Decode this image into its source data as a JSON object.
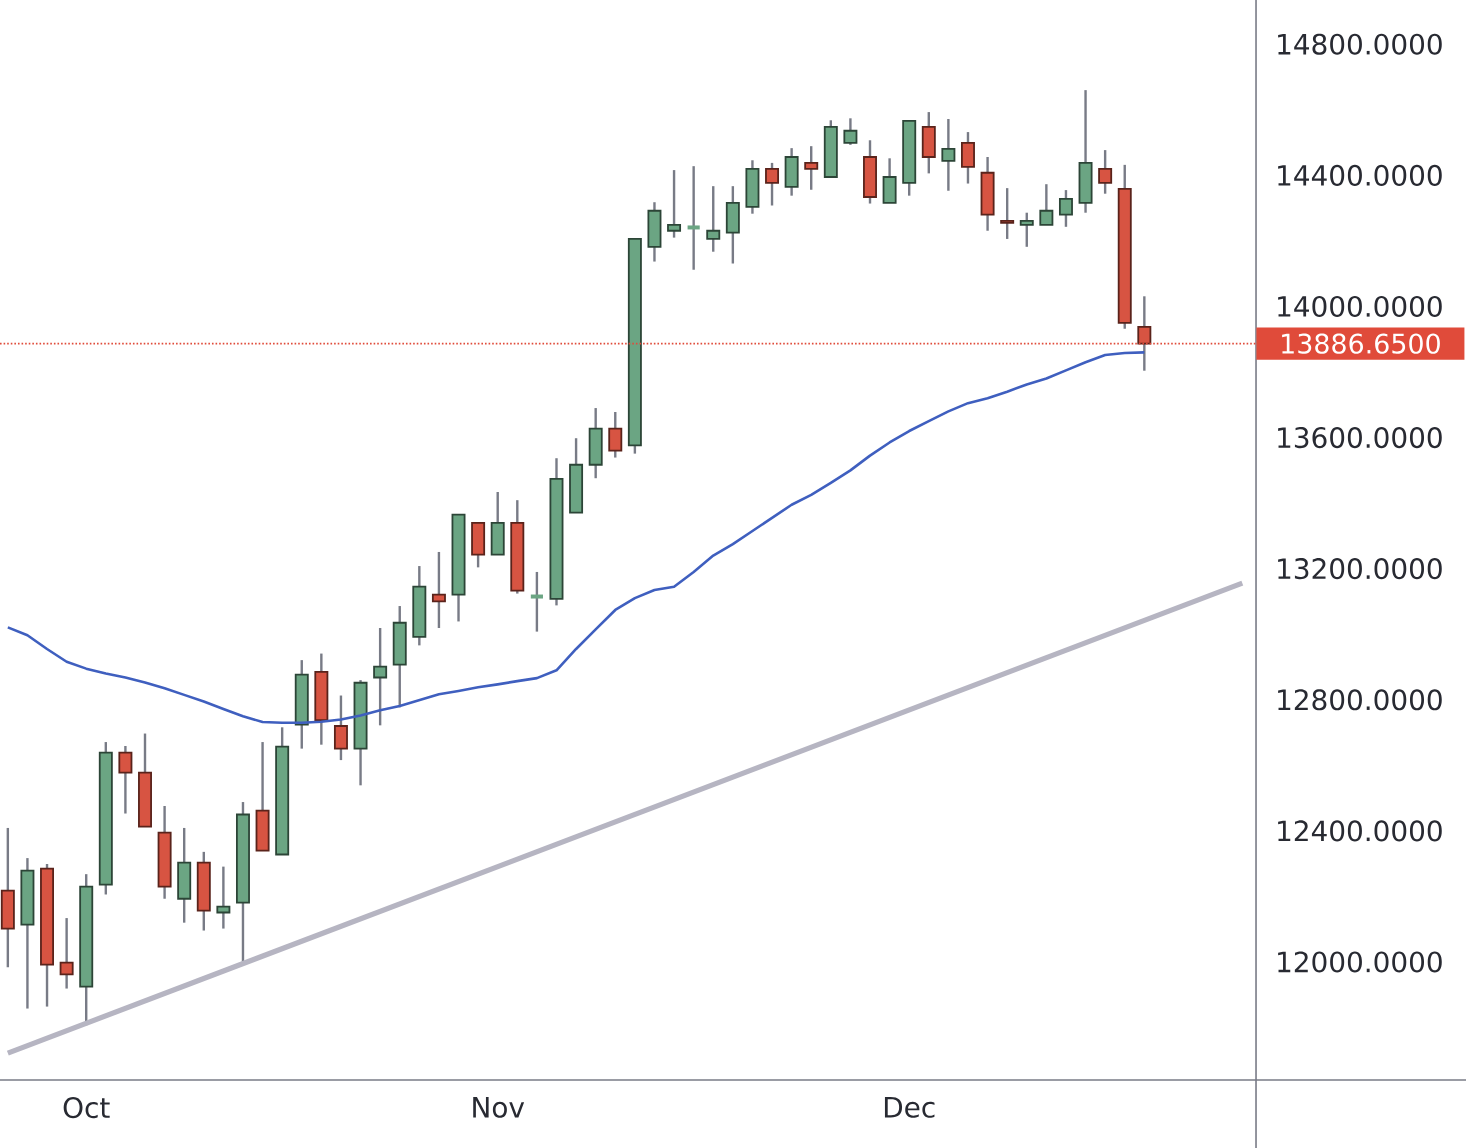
{
  "chart_data": {
    "type": "candlestick",
    "categories": [
      null,
      null,
      null,
      null,
      "Oct",
      null,
      null,
      null,
      null,
      null,
      null,
      null,
      null,
      null,
      null,
      null,
      null,
      null,
      null,
      null,
      null,
      null,
      null,
      null,
      null,
      "Nov",
      null,
      null,
      null,
      null,
      null,
      null,
      null,
      null,
      null,
      null,
      null,
      null,
      null,
      null,
      null,
      null,
      null,
      null,
      null,
      null,
      "Dec",
      null,
      null,
      null,
      null,
      null,
      null,
      null,
      null,
      null,
      null,
      null,
      null,
      null,
      null,
      null,
      null,
      null
    ],
    "ohlc": [
      [
        12218,
        12409,
        11984,
        12102
      ],
      [
        12114,
        12317,
        11858,
        12279
      ],
      [
        12285,
        12299,
        11864,
        11992
      ],
      [
        11998,
        12134,
        11919,
        11962
      ],
      [
        11925,
        12268,
        11807,
        12230
      ],
      [
        12236,
        12671,
        12206,
        12639
      ],
      [
        12639,
        12659,
        12453,
        12578
      ],
      [
        12578,
        12697,
        12413,
        12413
      ],
      [
        12395,
        12476,
        12193,
        12230
      ],
      [
        12193,
        12409,
        12120,
        12303
      ],
      [
        12303,
        12336,
        12096,
        12157
      ],
      [
        12151,
        12291,
        12102,
        12169
      ],
      [
        12181,
        12488,
        11990,
        12450
      ],
      [
        12462,
        12671,
        12340,
        12340
      ],
      [
        12328,
        12716,
        12328,
        12657
      ],
      [
        12724,
        12921,
        12651,
        12877
      ],
      [
        12885,
        12941,
        12663,
        12738
      ],
      [
        12720,
        12813,
        12616,
        12651
      ],
      [
        12651,
        12860,
        12539,
        12852
      ],
      [
        12868,
        13019,
        12722,
        12901
      ],
      [
        12907,
        13086,
        12777,
        13035
      ],
      [
        12992,
        13208,
        12966,
        13145
      ],
      [
        13121,
        13251,
        13019,
        13100
      ],
      [
        13121,
        13365,
        13039,
        13365
      ],
      [
        13340,
        13340,
        13204,
        13243
      ],
      [
        13243,
        13434,
        13243,
        13340
      ],
      [
        13340,
        13409,
        13124,
        13133
      ],
      [
        13115,
        13190,
        13008,
        13115
      ],
      [
        13108,
        13537,
        13088,
        13474
      ],
      [
        13371,
        13598,
        13371,
        13517
      ],
      [
        13517,
        13690,
        13476,
        13627
      ],
      [
        13627,
        13678,
        13539,
        13560
      ],
      [
        13576,
        14206,
        13551,
        14206
      ],
      [
        14182,
        14318,
        14137,
        14292
      ],
      [
        14231,
        14416,
        14210,
        14249
      ],
      [
        14241,
        14428,
        14112,
        14241
      ],
      [
        14206,
        14367,
        14167,
        14231
      ],
      [
        14225,
        14367,
        14131,
        14316
      ],
      [
        14304,
        14446,
        14283,
        14420
      ],
      [
        14420,
        14438,
        14308,
        14377
      ],
      [
        14365,
        14483,
        14338,
        14456
      ],
      [
        14438,
        14489,
        14356,
        14420
      ],
      [
        14395,
        14568,
        14395,
        14548
      ],
      [
        14499,
        14574,
        14493,
        14536
      ],
      [
        14456,
        14507,
        14314,
        14334
      ],
      [
        14316,
        14452,
        14316,
        14395
      ],
      [
        14377,
        14566,
        14338,
        14566
      ],
      [
        14548,
        14593,
        14406,
        14456
      ],
      [
        14444,
        14572,
        14353,
        14481
      ],
      [
        14499,
        14532,
        14375,
        14426
      ],
      [
        14408,
        14456,
        14231,
        14280
      ],
      [
        14261,
        14361,
        14206,
        14255
      ],
      [
        14249,
        14286,
        14182,
        14261
      ],
      [
        14249,
        14373,
        14249,
        14292
      ],
      [
        14280,
        14355,
        14243,
        14328
      ],
      [
        14316,
        14660,
        14286,
        14438
      ],
      [
        14420,
        14477,
        14344,
        14377
      ],
      [
        14359,
        14432,
        13932,
        13950
      ],
      [
        13938,
        14031,
        13804,
        13886.65
      ],
      null,
      null,
      null,
      null,
      null
    ],
    "colors": [
      "#d75442",
      "#6ba583",
      "#d75442",
      "#d75442",
      "#6ba583",
      "#6ba583",
      "#d75442",
      "#d75442",
      "#d75442",
      "#6ba583",
      "#d75442",
      "#6ba583",
      "#6ba583",
      "#d75442",
      "#6ba583",
      "#6ba583",
      "#d75442",
      "#d75442",
      "#6ba583",
      "#6ba583",
      "#6ba583",
      "#6ba583",
      "#d75442",
      "#6ba583",
      "#d75442",
      "#6ba583",
      "#d75442",
      "#6ba583",
      "#6ba583",
      "#6ba583",
      "#6ba583",
      "#d75442",
      "#6ba583",
      "#6ba583",
      "#6ba583",
      "#6ba583",
      "#6ba583",
      "#6ba583",
      "#6ba583",
      "#d75442",
      "#6ba583",
      "#d75442",
      "#6ba583",
      "#6ba583",
      "#d75442",
      "#6ba583",
      "#6ba583",
      "#d75442",
      "#6ba583",
      "#d75442",
      "#d75442",
      "#d75442",
      "#6ba583",
      "#6ba583",
      "#6ba583",
      "#6ba583",
      "#d75442",
      "#d75442",
      "#d75442",
      null,
      null,
      null,
      null,
      null
    ],
    "series": [
      {
        "type": "line",
        "color": "#3f5fbf",
        "values": [
          13021,
          12997,
          12955,
          12916,
          12895,
          12880,
          12868,
          12853,
          12835,
          12815,
          12795,
          12772,
          12750,
          12732,
          12730,
          12730,
          12733,
          12740,
          12752,
          12768,
          12781,
          12799,
          12817,
          12827,
          12838,
          12847,
          12857,
          12866,
          12890,
          12955,
          13015,
          13074,
          13110,
          13135,
          13145,
          13190,
          13240,
          13275,
          13315,
          13355,
          13395,
          13425,
          13462,
          13500,
          13545,
          13585,
          13620,
          13650,
          13680,
          13705,
          13720,
          13740,
          13762,
          13780,
          13805,
          13830,
          13852,
          13858,
          13860,
          null,
          null,
          null,
          null,
          null
        ]
      },
      {
        "type": "line",
        "color": "#b6b5c2",
        "values": [
          11722,
          null,
          null,
          null,
          null,
          null,
          null,
          null,
          null,
          null,
          null,
          null,
          null,
          null,
          null,
          null,
          null,
          null,
          null,
          null,
          null,
          null,
          null,
          null,
          null,
          null,
          null,
          null,
          null,
          null,
          null,
          null,
          null,
          null,
          null,
          null,
          null,
          null,
          null,
          null,
          null,
          null,
          null,
          null,
          null,
          null,
          null,
          null,
          null,
          null,
          null,
          null,
          null,
          null,
          null,
          null,
          null,
          null,
          null,
          null,
          null,
          null,
          null,
          13156
        ]
      }
    ],
    "ylim": [
      11640,
      14935
    ],
    "yticks": [
      {
        "value": 12000,
        "label": "12000.0000"
      },
      {
        "value": 12400,
        "label": "12400.0000"
      },
      {
        "value": 12800,
        "label": "12800.0000"
      },
      {
        "value": 13200,
        "label": "13200.0000"
      },
      {
        "value": 13600,
        "label": "13600.0000"
      },
      {
        "value": 14000,
        "label": "14000.0000"
      },
      {
        "value": 14400,
        "label": "14400.0000"
      },
      {
        "value": 14800,
        "label": "14800.0000"
      }
    ],
    "ref_lines": [
      {
        "axis": "y",
        "value": 13886.65,
        "label": "13886.6500",
        "color": "#e04b3a",
        "line_style": "dotted"
      }
    ]
  }
}
